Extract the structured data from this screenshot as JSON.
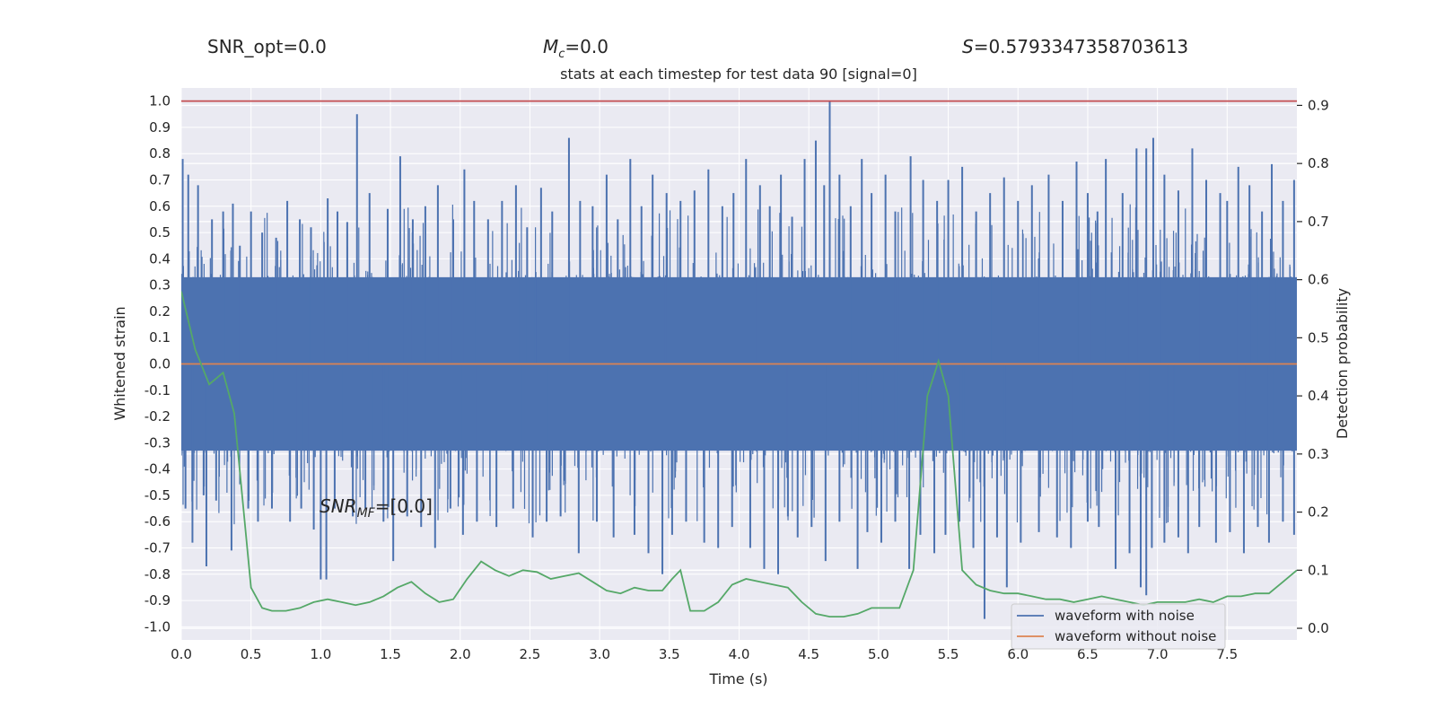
{
  "header": {
    "snr_opt": "SNR_opt=0.0",
    "mc_symbol": "M",
    "mc_sub": "c",
    "mc_value": "=0.0",
    "s_symbol": "S",
    "s_value": "=0.5793347358703613"
  },
  "chart_data": {
    "type": "line",
    "title": "stats at each timestep for test data 90 [signal=0]",
    "xlabel": "Time (s)",
    "ylabel": "Whitened strain",
    "y2label": "Detection probability",
    "xlim": [
      0.0,
      8.0
    ],
    "ylim": [
      -1.05,
      1.05
    ],
    "y2lim": [
      -0.02,
      0.93
    ],
    "xticks": [
      "0.0",
      "0.5",
      "1.0",
      "1.5",
      "2.0",
      "2.5",
      "3.0",
      "3.5",
      "4.0",
      "4.5",
      "5.0",
      "5.5",
      "6.0",
      "6.5",
      "7.0",
      "7.5"
    ],
    "yticks": [
      "1.0",
      "0.9",
      "0.8",
      "0.7",
      "0.6",
      "0.5",
      "0.4",
      "0.3",
      "0.2",
      "0.1",
      "0.0",
      "-0.1",
      "-0.2",
      "-0.3",
      "-0.4",
      "-0.5",
      "-0.6",
      "-0.7",
      "-0.8",
      "-0.9",
      "-1.0"
    ],
    "y2ticks": [
      "0.9",
      "0.8",
      "0.7",
      "0.6",
      "0.5",
      "0.4",
      "0.3",
      "0.2",
      "0.1",
      "0.0"
    ],
    "grid": true,
    "legend_position": "bottom-right",
    "annotation": {
      "symbol": "SNR",
      "sub": "MF",
      "value": "=[0.0]"
    },
    "colors": {
      "noise": "#4c72b0",
      "clean": "#dd8452",
      "prob": "#55a868",
      "threshold": "#c44e52",
      "axes_bg": "#eaeaf2"
    },
    "series": [
      {
        "name": "waveform with noise",
        "axis": "left",
        "note": "dense whitened noise, bulk amplitude about 0.33, peaks up to 1.0",
        "peaks_high": [
          [
            0.01,
            0.78
          ],
          [
            0.05,
            0.72
          ],
          [
            0.12,
            0.68
          ],
          [
            0.22,
            0.55
          ],
          [
            0.3,
            0.58
          ],
          [
            0.37,
            0.61
          ],
          [
            0.42,
            0.45
          ],
          [
            0.5,
            0.58
          ],
          [
            0.58,
            0.5
          ],
          [
            0.68,
            0.48
          ],
          [
            0.76,
            0.62
          ],
          [
            0.85,
            0.55
          ],
          [
            0.93,
            0.52
          ],
          [
            1.05,
            0.63
          ],
          [
            1.12,
            0.58
          ],
          [
            1.19,
            0.54
          ],
          [
            1.26,
            0.95
          ],
          [
            1.35,
            0.65
          ],
          [
            1.48,
            0.59
          ],
          [
            1.57,
            0.79
          ],
          [
            1.66,
            0.55
          ],
          [
            1.75,
            0.6
          ],
          [
            1.84,
            0.68
          ],
          [
            1.95,
            0.55
          ],
          [
            2.03,
            0.74
          ],
          [
            2.1,
            0.62
          ],
          [
            2.2,
            0.55
          ],
          [
            2.3,
            0.62
          ],
          [
            2.4,
            0.68
          ],
          [
            2.48,
            0.52
          ],
          [
            2.58,
            0.67
          ],
          [
            2.66,
            0.58
          ],
          [
            2.78,
            0.86
          ],
          [
            2.86,
            0.62
          ],
          [
            2.95,
            0.6
          ],
          [
            3.05,
            0.72
          ],
          [
            3.13,
            0.55
          ],
          [
            3.22,
            0.78
          ],
          [
            3.3,
            0.6
          ],
          [
            3.38,
            0.72
          ],
          [
            3.48,
            0.65
          ],
          [
            3.58,
            0.62
          ],
          [
            3.68,
            0.66
          ],
          [
            3.78,
            0.74
          ],
          [
            3.88,
            0.6
          ],
          [
            3.96,
            0.65
          ],
          [
            4.05,
            0.78
          ],
          [
            4.15,
            0.68
          ],
          [
            4.22,
            0.6
          ],
          [
            4.3,
            0.72
          ],
          [
            4.38,
            0.56
          ],
          [
            4.47,
            0.78
          ],
          [
            4.55,
            0.85
          ],
          [
            4.61,
            0.68
          ],
          [
            4.65,
            1.0
          ],
          [
            4.72,
            0.72
          ],
          [
            4.8,
            0.6
          ],
          [
            4.88,
            0.78
          ],
          [
            4.95,
            0.65
          ],
          [
            5.05,
            0.72
          ],
          [
            5.12,
            0.58
          ],
          [
            5.23,
            0.79
          ],
          [
            5.32,
            0.7
          ],
          [
            5.42,
            0.62
          ],
          [
            5.5,
            0.7
          ],
          [
            5.6,
            0.75
          ],
          [
            5.7,
            0.58
          ],
          [
            5.8,
            0.65
          ],
          [
            5.9,
            0.71
          ],
          [
            6.0,
            0.62
          ],
          [
            6.1,
            0.68
          ],
          [
            6.22,
            0.72
          ],
          [
            6.32,
            0.62
          ],
          [
            6.42,
            0.77
          ],
          [
            6.5,
            0.65
          ],
          [
            6.57,
            0.58
          ],
          [
            6.63,
            0.78
          ],
          [
            6.75,
            0.65
          ],
          [
            6.85,
            0.82
          ],
          [
            6.92,
            0.82
          ],
          [
            6.97,
            0.86
          ],
          [
            7.05,
            0.72
          ],
          [
            7.15,
            0.66
          ],
          [
            7.25,
            0.82
          ],
          [
            7.35,
            0.7
          ],
          [
            7.45,
            0.65
          ],
          [
            7.5,
            0.62
          ],
          [
            7.58,
            0.75
          ],
          [
            7.66,
            0.68
          ],
          [
            7.75,
            0.58
          ],
          [
            7.82,
            0.76
          ],
          [
            7.9,
            0.62
          ],
          [
            7.98,
            0.7
          ]
        ],
        "peaks_low": [
          [
            0.03,
            -0.55
          ],
          [
            0.08,
            -0.68
          ],
          [
            0.16,
            -0.5
          ],
          [
            0.18,
            -0.77
          ],
          [
            0.25,
            -0.52
          ],
          [
            0.36,
            -0.71
          ],
          [
            0.48,
            -0.55
          ],
          [
            0.55,
            -0.6
          ],
          [
            0.65,
            -0.55
          ],
          [
            0.78,
            -0.6
          ],
          [
            0.86,
            -0.55
          ],
          [
            0.95,
            -0.63
          ],
          [
            1.0,
            -0.82
          ],
          [
            1.04,
            -0.82
          ],
          [
            1.1,
            -0.55
          ],
          [
            1.23,
            -0.58
          ],
          [
            1.32,
            -0.55
          ],
          [
            1.45,
            -0.6
          ],
          [
            1.52,
            -0.75
          ],
          [
            1.62,
            -0.58
          ],
          [
            1.72,
            -0.62
          ],
          [
            1.82,
            -0.7
          ],
          [
            1.93,
            -0.55
          ],
          [
            2.02,
            -0.65
          ],
          [
            2.12,
            -0.6
          ],
          [
            2.26,
            -0.62
          ],
          [
            2.38,
            -0.55
          ],
          [
            2.52,
            -0.66
          ],
          [
            2.62,
            -0.6
          ],
          [
            2.72,
            -0.58
          ],
          [
            2.85,
            -0.72
          ],
          [
            2.98,
            -0.6
          ],
          [
            3.1,
            -0.66
          ],
          [
            3.25,
            -0.65
          ],
          [
            3.35,
            -0.72
          ],
          [
            3.45,
            -0.8
          ],
          [
            3.52,
            -0.65
          ],
          [
            3.62,
            -0.6
          ],
          [
            3.75,
            -0.68
          ],
          [
            3.85,
            -0.7
          ],
          [
            3.95,
            -0.62
          ],
          [
            4.08,
            -0.7
          ],
          [
            4.18,
            -0.78
          ],
          [
            4.28,
            -0.8
          ],
          [
            4.35,
            -0.58
          ],
          [
            4.42,
            -0.66
          ],
          [
            4.52,
            -0.62
          ],
          [
            4.62,
            -0.75
          ],
          [
            4.72,
            -0.6
          ],
          [
            4.85,
            -0.78
          ],
          [
            4.92,
            -0.64
          ],
          [
            5.02,
            -0.68
          ],
          [
            5.12,
            -0.6
          ],
          [
            5.22,
            -0.78
          ],
          [
            5.3,
            -0.65
          ],
          [
            5.4,
            -0.72
          ],
          [
            5.48,
            -0.65
          ],
          [
            5.58,
            -0.6
          ],
          [
            5.68,
            -0.7
          ],
          [
            5.76,
            -0.97
          ],
          [
            5.85,
            -0.66
          ],
          [
            5.92,
            -0.85
          ],
          [
            6.02,
            -0.68
          ],
          [
            6.15,
            -0.64
          ],
          [
            6.28,
            -0.66
          ],
          [
            6.38,
            -0.7
          ],
          [
            6.5,
            -0.6
          ],
          [
            6.58,
            -0.62
          ],
          [
            6.7,
            -0.78
          ],
          [
            6.8,
            -0.72
          ],
          [
            6.88,
            -0.85
          ],
          [
            6.92,
            -0.88
          ],
          [
            6.96,
            -0.7
          ],
          [
            7.05,
            -0.68
          ],
          [
            7.15,
            -0.66
          ],
          [
            7.22,
            -0.72
          ],
          [
            7.3,
            -0.62
          ],
          [
            7.42,
            -0.68
          ],
          [
            7.52,
            -0.64
          ],
          [
            7.62,
            -0.72
          ],
          [
            7.72,
            -0.62
          ],
          [
            7.8,
            -0.68
          ],
          [
            7.9,
            -0.6
          ],
          [
            7.98,
            -0.65
          ]
        ]
      },
      {
        "name": "waveform without noise",
        "axis": "left",
        "constant": 0.0
      },
      {
        "name": "",
        "axis": "left",
        "role": "threshold",
        "constant": 1.0
      },
      {
        "name": "",
        "axis": "right",
        "role": "detection probability",
        "x": [
          0.0,
          0.1,
          0.2,
          0.3,
          0.38,
          0.5,
          0.58,
          0.65,
          0.75,
          0.85,
          0.95,
          1.05,
          1.15,
          1.25,
          1.35,
          1.45,
          1.55,
          1.65,
          1.75,
          1.85,
          1.95,
          2.05,
          2.15,
          2.25,
          2.35,
          2.45,
          2.55,
          2.65,
          2.75,
          2.85,
          2.95,
          3.05,
          3.15,
          3.25,
          3.35,
          3.45,
          3.52,
          3.58,
          3.65,
          3.75,
          3.85,
          3.95,
          4.05,
          4.15,
          4.25,
          4.35,
          4.45,
          4.55,
          4.65,
          4.75,
          4.85,
          4.95,
          5.05,
          5.15,
          5.25,
          5.35,
          5.43,
          5.5,
          5.6,
          5.7,
          5.8,
          5.9,
          6.0,
          6.1,
          6.2,
          6.3,
          6.4,
          6.5,
          6.6,
          6.7,
          6.8,
          6.9,
          7.0,
          7.1,
          7.2,
          7.3,
          7.4,
          7.5,
          7.6,
          7.7,
          7.8,
          7.9,
          8.0
        ],
        "values": [
          0.58,
          0.48,
          0.42,
          0.44,
          0.37,
          0.07,
          0.035,
          0.03,
          0.03,
          0.035,
          0.045,
          0.05,
          0.045,
          0.04,
          0.045,
          0.055,
          0.07,
          0.08,
          0.06,
          0.045,
          0.05,
          0.085,
          0.115,
          0.1,
          0.09,
          0.1,
          0.097,
          0.085,
          0.09,
          0.095,
          0.08,
          0.065,
          0.06,
          0.07,
          0.065,
          0.065,
          0.085,
          0.1,
          0.03,
          0.03,
          0.045,
          0.075,
          0.085,
          0.08,
          0.075,
          0.07,
          0.045,
          0.025,
          0.02,
          0.02,
          0.025,
          0.035,
          0.035,
          0.035,
          0.1,
          0.4,
          0.46,
          0.4,
          0.1,
          0.075,
          0.065,
          0.06,
          0.06,
          0.055,
          0.05,
          0.05,
          0.045,
          0.05,
          0.055,
          0.05,
          0.045,
          0.04,
          0.045,
          0.045,
          0.045,
          0.05,
          0.045,
          0.055,
          0.055,
          0.06,
          0.06,
          0.08,
          0.1
        ]
      }
    ]
  }
}
